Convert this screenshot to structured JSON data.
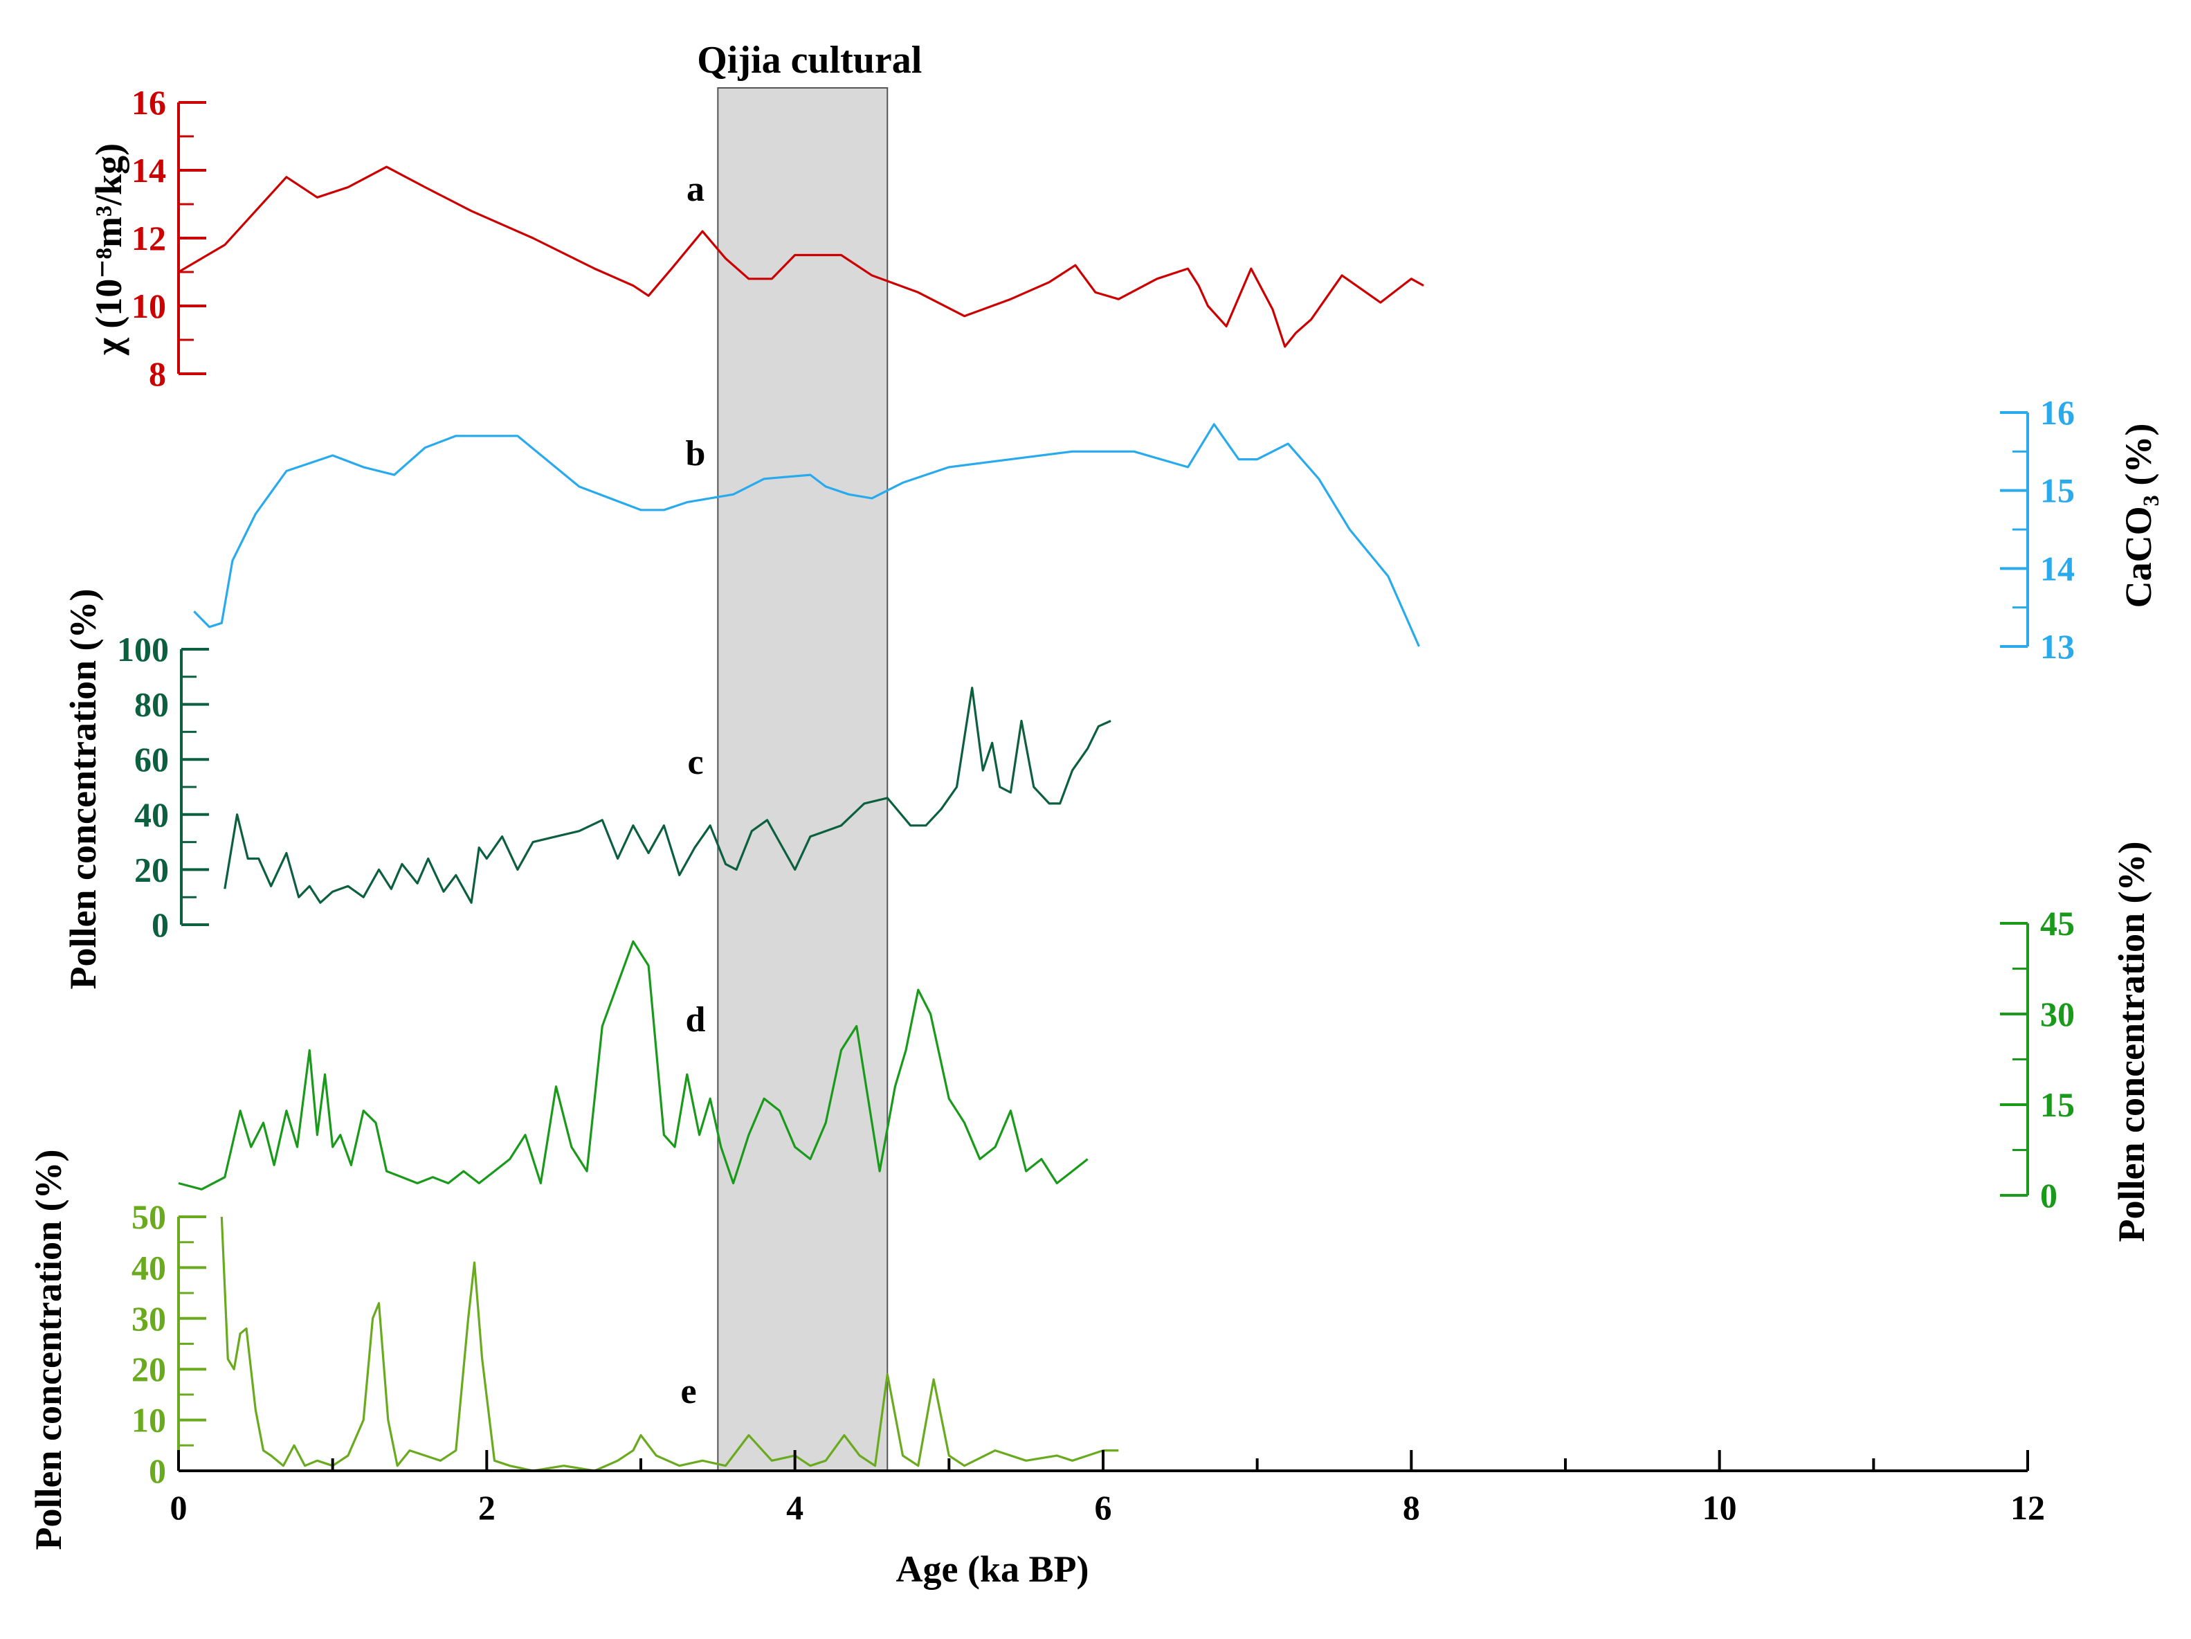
{
  "chart_data": {
    "type": "line",
    "culture_band": {
      "label": "Qijia cultural",
      "x_range": [
        3.5,
        4.6
      ]
    },
    "x_axis": {
      "label": "Age (ka BP)",
      "range": [
        0,
        12
      ],
      "ticks": [
        0,
        2,
        4,
        6,
        8,
        10,
        12
      ],
      "minor_step": 1
    },
    "series": [
      {
        "letter": "a",
        "color": "#cc0000",
        "y_label": "χ (10⁻⁸m³/kg)",
        "y_range": [
          8,
          16
        ],
        "y_ticks": [
          8,
          10,
          12,
          14,
          16
        ],
        "x": [
          0,
          0.3,
          0.7,
          0.9,
          1.1,
          1.35,
          1.6,
          1.9,
          2.3,
          2.7,
          2.95,
          3.05,
          3.2,
          3.4,
          3.55,
          3.7,
          3.85,
          4.0,
          4.3,
          4.5,
          4.8,
          5.1,
          5.4,
          5.65,
          5.82,
          5.95,
          6.1,
          6.35,
          6.55,
          6.62,
          6.68,
          6.8,
          6.96,
          7.1,
          7.18,
          7.25,
          7.35,
          7.55,
          7.8,
          8.0,
          8.08
        ],
        "values": [
          11.0,
          11.8,
          13.8,
          13.2,
          13.5,
          14.1,
          13.5,
          12.8,
          12.0,
          11.1,
          10.6,
          10.3,
          11.1,
          12.2,
          11.4,
          10.8,
          10.8,
          11.5,
          11.5,
          10.9,
          10.4,
          9.7,
          10.2,
          10.7,
          11.2,
          10.4,
          10.2,
          10.8,
          11.1,
          10.6,
          10.0,
          9.4,
          11.1,
          9.9,
          8.8,
          9.2,
          9.6,
          10.9,
          10.1,
          10.8,
          10.6
        ]
      },
      {
        "letter": "b",
        "color": "#29aaed",
        "y_label": "CaCO₃ (%)",
        "y_range": [
          13,
          16
        ],
        "y_ticks": [
          13,
          14,
          15,
          16
        ],
        "x": [
          0.1,
          0.2,
          0.28,
          0.35,
          0.5,
          0.7,
          1.0,
          1.2,
          1.4,
          1.6,
          1.8,
          2.0,
          2.2,
          2.6,
          3.0,
          3.15,
          3.3,
          3.6,
          3.8,
          4.1,
          4.2,
          4.35,
          4.5,
          4.7,
          5.0,
          5.4,
          5.8,
          6.2,
          6.55,
          6.72,
          6.88,
          7.0,
          7.2,
          7.4,
          7.6,
          7.85,
          8.05
        ],
        "values": [
          13.45,
          13.25,
          13.3,
          14.1,
          14.7,
          15.25,
          15.45,
          15.3,
          15.2,
          15.55,
          15.7,
          15.7,
          15.7,
          15.05,
          14.75,
          14.75,
          14.85,
          14.95,
          15.15,
          15.2,
          15.05,
          14.95,
          14.9,
          15.1,
          15.3,
          15.4,
          15.5,
          15.5,
          15.3,
          15.85,
          15.4,
          15.4,
          15.6,
          15.15,
          14.5,
          13.9,
          13.0
        ]
      },
      {
        "letter": "c",
        "color": "#0c6040",
        "y_label": "Pollen concentration (%)",
        "y_range": [
          0,
          100
        ],
        "y_ticks": [
          0,
          20,
          40,
          60,
          80,
          100
        ],
        "x": [
          0.3,
          0.38,
          0.45,
          0.52,
          0.6,
          0.7,
          0.78,
          0.85,
          0.92,
          1.0,
          1.1,
          1.2,
          1.3,
          1.38,
          1.45,
          1.55,
          1.62,
          1.72,
          1.8,
          1.9,
          1.95,
          2.0,
          2.1,
          2.2,
          2.3,
          2.45,
          2.6,
          2.75,
          2.85,
          2.95,
          3.05,
          3.15,
          3.25,
          3.35,
          3.45,
          3.55,
          3.62,
          3.72,
          3.82,
          3.9,
          4.0,
          4.1,
          4.2,
          4.3,
          4.45,
          4.6,
          4.75,
          4.85,
          4.95,
          5.05,
          5.15,
          5.22,
          5.28,
          5.33,
          5.4,
          5.47,
          5.55,
          5.65,
          5.72,
          5.8,
          5.9,
          5.97,
          6.05
        ],
        "values": [
          13,
          40,
          24,
          24,
          14,
          26,
          10,
          14,
          8,
          12,
          14,
          10,
          20,
          13,
          22,
          15,
          24,
          12,
          18,
          8,
          28,
          24,
          32,
          20,
          30,
          32,
          34,
          38,
          24,
          36,
          26,
          36,
          18,
          28,
          36,
          22,
          20,
          34,
          38,
          30,
          20,
          32,
          34,
          36,
          44,
          46,
          36,
          36,
          42,
          50,
          86,
          56,
          66,
          50,
          48,
          74,
          50,
          44,
          44,
          56,
          64,
          72,
          74
        ]
      },
      {
        "letter": "d",
        "color": "#1a9a1a",
        "y_label": "Pollen concentration (%)",
        "y_range": [
          0,
          45
        ],
        "y_ticks": [
          0,
          15,
          30,
          45
        ],
        "x": [
          0,
          0.15,
          0.3,
          0.4,
          0.47,
          0.55,
          0.62,
          0.7,
          0.77,
          0.85,
          0.9,
          0.95,
          1.0,
          1.05,
          1.12,
          1.2,
          1.28,
          1.35,
          1.45,
          1.55,
          1.65,
          1.75,
          1.85,
          1.95,
          2.05,
          2.15,
          2.25,
          2.35,
          2.45,
          2.55,
          2.65,
          2.75,
          2.85,
          2.95,
          3.05,
          3.15,
          3.22,
          3.3,
          3.38,
          3.45,
          3.52,
          3.6,
          3.7,
          3.8,
          3.9,
          4.0,
          4.1,
          4.2,
          4.3,
          4.4,
          4.55,
          4.65,
          4.72,
          4.8,
          4.88,
          5.0,
          5.1,
          5.2,
          5.3,
          5.4,
          5.5,
          5.6,
          5.7,
          5.8,
          5.9
        ],
        "values": [
          2,
          1,
          3,
          14,
          8,
          12,
          5,
          14,
          8,
          24,
          10,
          20,
          8,
          10,
          5,
          14,
          12,
          4,
          3,
          2,
          3,
          2,
          4,
          2,
          4,
          6,
          10,
          2,
          18,
          8,
          4,
          28,
          35,
          42,
          38,
          10,
          8,
          20,
          10,
          16,
          8,
          2,
          10,
          16,
          14,
          8,
          6,
          12,
          24,
          28,
          4,
          18,
          24,
          34,
          30,
          16,
          12,
          6,
          8,
          14,
          4,
          6,
          2,
          4,
          6
        ]
      },
      {
        "letter": "e",
        "color": "#6aaa1e",
        "y_label": "Pollen concentration (%)",
        "y_range": [
          0,
          50
        ],
        "y_ticks": [
          0,
          10,
          20,
          30,
          40,
          50
        ],
        "x": [
          0.28,
          0.32,
          0.36,
          0.4,
          0.44,
          0.5,
          0.55,
          0.6,
          0.68,
          0.75,
          0.82,
          0.9,
          1.0,
          1.1,
          1.2,
          1.26,
          1.3,
          1.36,
          1.42,
          1.5,
          1.6,
          1.7,
          1.8,
          1.88,
          1.92,
          1.97,
          2.05,
          2.15,
          2.3,
          2.5,
          2.7,
          2.85,
          2.95,
          3.0,
          3.1,
          3.25,
          3.4,
          3.55,
          3.7,
          3.85,
          4.0,
          4.1,
          4.2,
          4.32,
          4.42,
          4.52,
          4.6,
          4.7,
          4.8,
          4.9,
          5.0,
          5.1,
          5.3,
          5.5,
          5.7,
          5.8,
          5.9,
          6.0,
          6.1
        ],
        "values": [
          50,
          22,
          20,
          27,
          28,
          12,
          4,
          3,
          1,
          5,
          1,
          2,
          1,
          3,
          10,
          30,
          33,
          10,
          1,
          4,
          3,
          2,
          4,
          30,
          41,
          22,
          2,
          1,
          0,
          1,
          0,
          2,
          4,
          7,
          3,
          1,
          2,
          1,
          7,
          2,
          3,
          1,
          2,
          7,
          3,
          1,
          19,
          3,
          1,
          18,
          3,
          1,
          4,
          2,
          3,
          2,
          3,
          4,
          4
        ]
      }
    ]
  }
}
